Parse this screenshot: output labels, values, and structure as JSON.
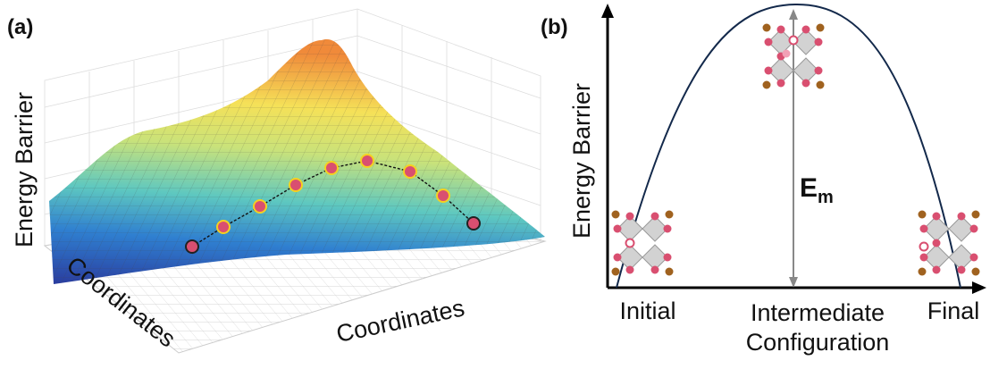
{
  "panel_a": {
    "label": "(a)",
    "y_axis_label": "Energy Barrier",
    "x_axis_label_left": "Coordinates",
    "x_axis_label_right": "Coordinates"
  },
  "panel_b": {
    "label": "(b)",
    "y_axis_label": "Energy Barrier",
    "barrier": {
      "symbol": "E",
      "subscript": "m"
    },
    "x_labels": {
      "initial": "Initial",
      "intermediate_line1": "Intermediate",
      "intermediate_line2": "Configuration",
      "final": "Final"
    }
  }
}
